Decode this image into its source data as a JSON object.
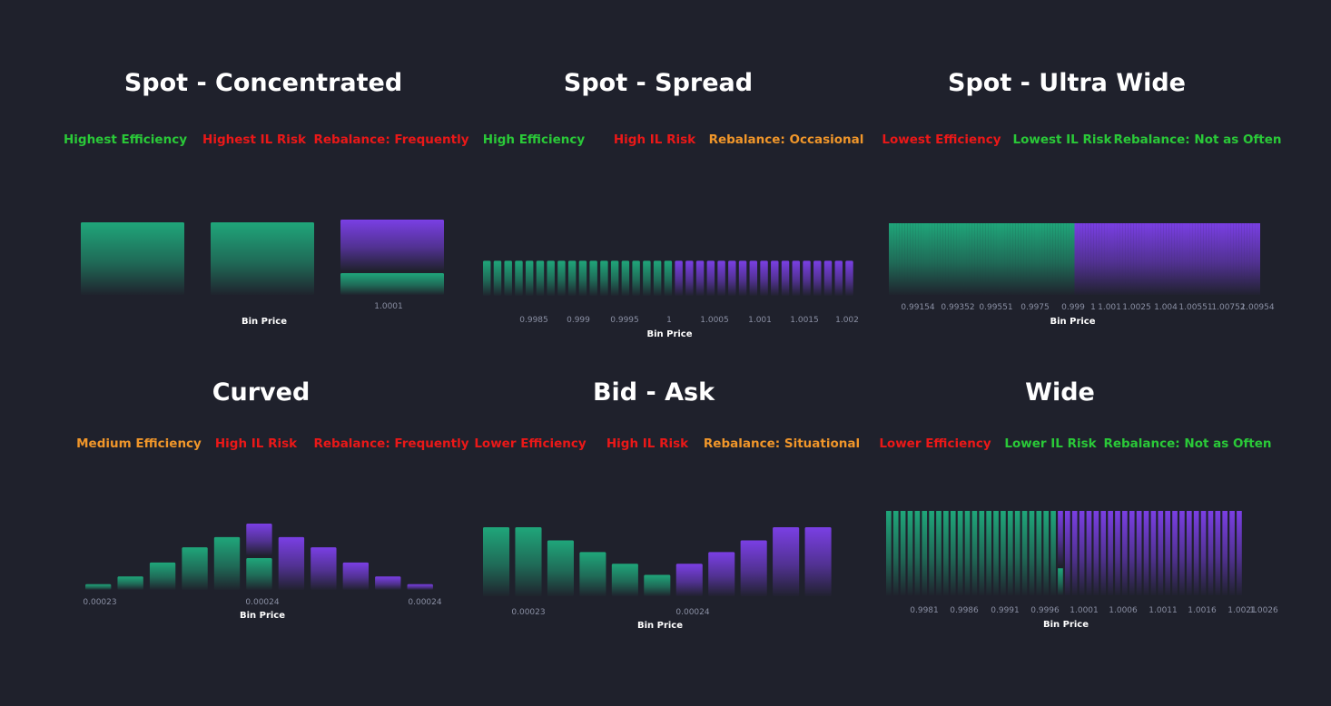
{
  "colors": {
    "background": "#1f212c",
    "green": "#1fa67a",
    "purple": "#7a3fe4",
    "good": "#2ac938",
    "bad": "#ea1818",
    "neutral": "#f0962a",
    "tick": "#8a8fa3"
  },
  "panels": [
    {
      "title": "Spot - Concentrated",
      "metrics": [
        {
          "label": "Highest Efficiency",
          "tone": "good"
        },
        {
          "label": "Highest IL Risk",
          "tone": "bad"
        },
        {
          "label": "Rebalance: Frequently",
          "tone": "bad"
        }
      ]
    },
    {
      "title": "Spot - Spread",
      "metrics": [
        {
          "label": "High Efficiency",
          "tone": "good"
        },
        {
          "label": "High IL Risk",
          "tone": "bad"
        },
        {
          "label": "Rebalance: Occasional",
          "tone": "neutral"
        }
      ]
    },
    {
      "title": "Spot - Ultra Wide",
      "metrics": [
        {
          "label": "Lowest Efficiency",
          "tone": "bad"
        },
        {
          "label": "Lowest IL Risk",
          "tone": "good"
        },
        {
          "label": "Rebalance: Not as Often",
          "tone": "good"
        }
      ]
    },
    {
      "title": "Curved",
      "metrics": [
        {
          "label": "Medium Efficiency",
          "tone": "neutral"
        },
        {
          "label": "High IL Risk",
          "tone": "bad"
        },
        {
          "label": "Rebalance: Frequently",
          "tone": "bad"
        }
      ]
    },
    {
      "title": "Bid - Ask",
      "metrics": [
        {
          "label": "Lower Efficiency",
          "tone": "bad"
        },
        {
          "label": "High IL Risk",
          "tone": "bad"
        },
        {
          "label": "Rebalance: Situational",
          "tone": "neutral"
        }
      ]
    },
    {
      "title": "Wide",
      "metrics": [
        {
          "label": "Lower Efficiency",
          "tone": "bad"
        },
        {
          "label": "Lower IL Risk",
          "tone": "good"
        },
        {
          "label": "Rebalance: Not as Often",
          "tone": "good"
        }
      ]
    }
  ],
  "chart_data": [
    {
      "type": "bar",
      "title": "Spot - Concentrated",
      "xlabel": "Bin Price",
      "ylim": [
        0,
        1
      ],
      "tick_labels": [
        "1.0001"
      ],
      "grid": false,
      "series": [
        {
          "color": "green",
          "values": [
            1,
            1,
            0.3
          ]
        },
        {
          "color": "purple",
          "values": [
            0,
            0,
            0.7
          ]
        }
      ]
    },
    {
      "type": "bar",
      "title": "Spot - Spread",
      "xlabel": "Bin Price",
      "ylim": [
        0,
        1
      ],
      "tick_labels": [
        "0.9985",
        "0.999",
        "0.9995",
        "1",
        "1.0005",
        "1.001",
        "1.0015",
        "1.002"
      ],
      "grid": false,
      "bin_count": 35,
      "green_bins": 18,
      "bar_value": 0.69
    },
    {
      "type": "bar",
      "title": "Spot - Ultra Wide",
      "xlabel": "Bin Price",
      "ylim": [
        0,
        1
      ],
      "tick_labels": [
        "0.99154",
        "0.99352",
        "0.99551",
        "0.9975",
        "0.999",
        "1",
        "1.001",
        "1.0025",
        "1.004",
        "1.00551",
        "1.00752",
        "1.00954"
      ],
      "grid": false,
      "bin_count": 138,
      "green_bins": 69,
      "bar_value": 1
    },
    {
      "type": "bar",
      "title": "Curved",
      "xlabel": "Bin Price",
      "ylim": [
        0,
        1
      ],
      "tick_labels": [
        "0.00023",
        "0.00024",
        "0.00024"
      ],
      "grid": false,
      "series": [
        {
          "color": "green",
          "values": [
            0.09,
            0.21,
            0.43,
            0.67,
            0.83,
            0.5,
            0,
            0,
            0,
            0,
            0
          ]
        },
        {
          "color": "purple",
          "values": [
            0,
            0,
            0,
            0,
            0,
            0.5,
            0.83,
            0.67,
            0.43,
            0.21,
            0.09
          ]
        }
      ]
    },
    {
      "type": "bar",
      "title": "Bid - Ask",
      "xlabel": "Bin Price",
      "ylim": [
        0,
        1
      ],
      "tick_labels": [
        "0.00023",
        "0.00024"
      ],
      "grid": false,
      "series": [
        {
          "color": "green",
          "values": [
            1,
            1,
            0.81,
            0.64,
            0.47,
            0.31,
            0,
            0,
            0,
            0,
            0
          ]
        },
        {
          "color": "purple",
          "values": [
            0,
            0,
            0,
            0,
            0,
            0,
            0.47,
            0.64,
            0.81,
            1,
            1
          ]
        }
      ]
    },
    {
      "type": "bar",
      "title": "Wide",
      "xlabel": "Bin Price",
      "ylim": [
        0,
        1
      ],
      "tick_labels": [
        "0.9981",
        "0.9986",
        "0.9991",
        "0.9996",
        "1.0001",
        "1.0006",
        "1.0011",
        "1.0016",
        "1.0021",
        "1.0026"
      ],
      "grid": false,
      "bin_count": 50,
      "green_bins": 25,
      "bar_value": 1,
      "split_bin": {
        "green": 0.32,
        "purple": 0.68
      }
    }
  ]
}
